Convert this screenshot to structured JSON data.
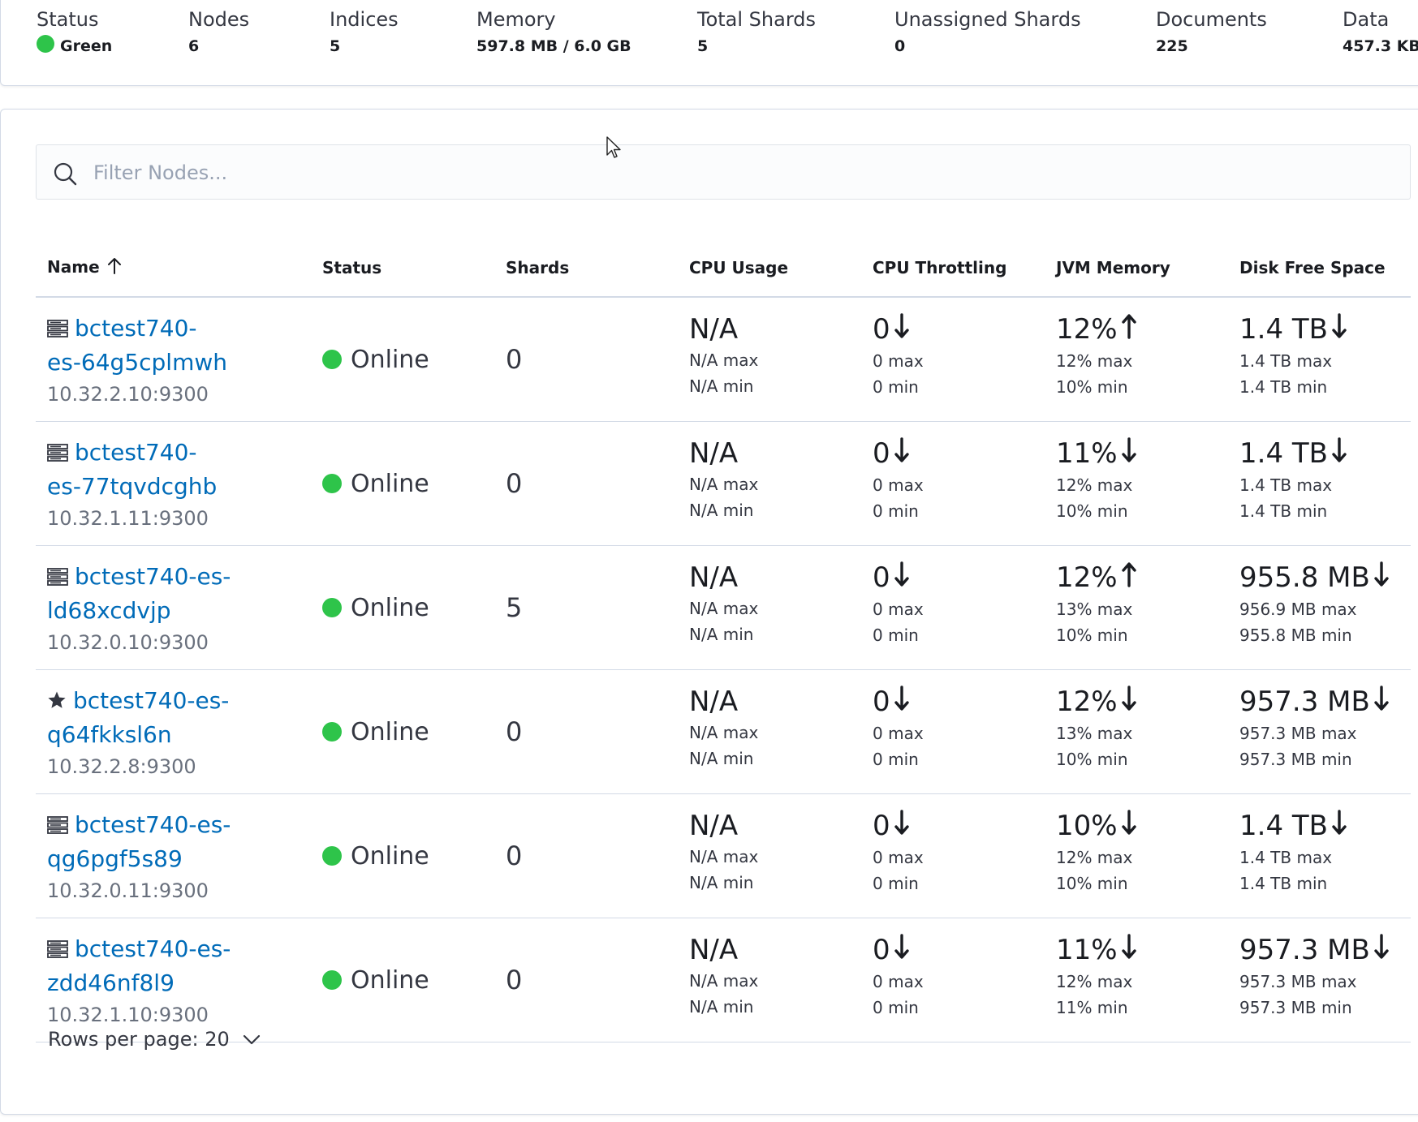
{
  "summary": {
    "status_label": "Status",
    "status_value": "Green",
    "nodes_label": "Nodes",
    "nodes_value": "6",
    "indices_label": "Indices",
    "indices_value": "5",
    "memory_label": "Memory",
    "memory_value": "597.8 MB / 6.0 GB",
    "total_shards_label": "Total Shards",
    "total_shards_value": "5",
    "unassigned_label": "Unassigned Shards",
    "unassigned_value": "0",
    "documents_label": "Documents",
    "documents_value": "225",
    "data_label": "Data",
    "data_value": "457.3 KB"
  },
  "search": {
    "placeholder": "Filter Nodes..."
  },
  "table": {
    "headers": {
      "name": "Name",
      "status": "Status",
      "shards": "Shards",
      "cpu_usage": "CPU Usage",
      "cpu_throttling": "CPU Throttling",
      "jvm_memory": "JVM Memory",
      "disk_free": "Disk Free Space"
    },
    "rows": [
      {
        "name_line1": "bctest740-",
        "name_line2": "es-64g5cplmwh",
        "ip": "10.32.2.10:9300",
        "status": "Online",
        "shards": "0",
        "cpu": "N/A",
        "cpu_max": "N/A max",
        "cpu_min": "N/A min",
        "thr": "0",
        "thr_max": "0 max",
        "thr_min": "0 min",
        "jvm": "12%",
        "jvm_max": "12% max",
        "jvm_min": "10% min",
        "disk": "1.4 TB",
        "disk_max": "1.4 TB max",
        "disk_min": "1.4 TB min"
      },
      {
        "name_line1": "bctest740-",
        "name_line2": "es-77tqvdcghb",
        "ip": "10.32.1.11:9300",
        "status": "Online",
        "shards": "0",
        "cpu": "N/A",
        "cpu_max": "N/A max",
        "cpu_min": "N/A min",
        "thr": "0",
        "thr_max": "0 max",
        "thr_min": "0 min",
        "jvm": "11%",
        "jvm_max": "12% max",
        "jvm_min": "10% min",
        "disk": "1.4 TB",
        "disk_max": "1.4 TB max",
        "disk_min": "1.4 TB min"
      },
      {
        "name_line1": "bctest740-es-",
        "name_line2": "ld68xcdvjp",
        "ip": "10.32.0.10:9300",
        "status": "Online",
        "shards": "5",
        "cpu": "N/A",
        "cpu_max": "N/A max",
        "cpu_min": "N/A min",
        "thr": "0",
        "thr_max": "0 max",
        "thr_min": "0 min",
        "jvm": "12%",
        "jvm_max": "13% max",
        "jvm_min": "10% min",
        "disk": "955.8 MB",
        "disk_max": "956.9 MB max",
        "disk_min": "955.8 MB min"
      },
      {
        "name_line1": "bctest740-es-",
        "name_line2": "q64fkksl6n",
        "ip": "10.32.2.8:9300",
        "status": "Online",
        "shards": "0",
        "cpu": "N/A",
        "cpu_max": "N/A max",
        "cpu_min": "N/A min",
        "thr": "0",
        "thr_max": "0 max",
        "thr_min": "0 min",
        "jvm": "12%",
        "jvm_max": "13% max",
        "jvm_min": "10% min",
        "disk": "957.3 MB",
        "disk_max": "957.3 MB max",
        "disk_min": "957.3 MB min"
      },
      {
        "name_line1": "bctest740-es-",
        "name_line2": "qg6pgf5s89",
        "ip": "10.32.0.11:9300",
        "status": "Online",
        "shards": "0",
        "cpu": "N/A",
        "cpu_max": "N/A max",
        "cpu_min": "N/A min",
        "thr": "0",
        "thr_max": "0 max",
        "thr_min": "0 min",
        "jvm": "10%",
        "jvm_max": "12% max",
        "jvm_min": "10% min",
        "disk": "1.4 TB",
        "disk_max": "1.4 TB max",
        "disk_min": "1.4 TB min"
      },
      {
        "name_line1": "bctest740-es-",
        "name_line2": "zdd46nf8l9",
        "ip": "10.32.1.10:9300",
        "status": "Online",
        "shards": "0",
        "cpu": "N/A",
        "cpu_max": "N/A max",
        "cpu_min": "N/A min",
        "thr": "0",
        "thr_max": "0 max",
        "thr_min": "0 min",
        "jvm": "11%",
        "jvm_max": "12% max",
        "jvm_min": "11% min",
        "disk": "957.3 MB",
        "disk_max": "957.3 MB max",
        "disk_min": "957.3 MB min"
      }
    ]
  },
  "footer": {
    "rows_per_page": "Rows per page: 20"
  },
  "colors": {
    "green": "#2ec44a",
    "link": "#006bb8",
    "border": "#d3dae6"
  },
  "icons": {
    "node": "server-icon",
    "master": "star-icon",
    "search": "search-icon",
    "sort": "arrow-up-icon",
    "trend_up": "arrow-up-icon",
    "trend_down": "arrow-down-icon",
    "dropdown": "chevron-down-icon"
  }
}
